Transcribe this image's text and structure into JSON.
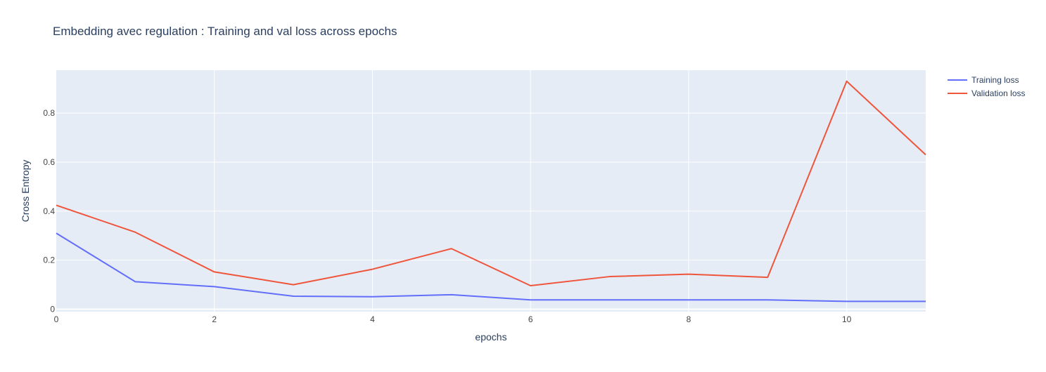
{
  "chart_data": {
    "type": "line",
    "title": "Embedding avec regulation : Training and val loss across epochs",
    "xlabel": "epochs",
    "ylabel": "Cross Entropy",
    "xlim": [
      0,
      11
    ],
    "ylim": [
      -0.01,
      0.975
    ],
    "xticks": [
      0,
      2,
      4,
      6,
      8,
      10
    ],
    "yticks": [
      0,
      0.2,
      0.4,
      0.6,
      0.8
    ],
    "xtick_labels": [
      "0",
      "2",
      "4",
      "6",
      "8",
      "10"
    ],
    "ytick_labels": [
      "0",
      "0.2",
      "0.4",
      "0.6",
      "0.8"
    ],
    "grid": true,
    "legend_position": "top-right",
    "x": [
      0,
      1,
      2,
      3,
      4,
      5,
      6,
      7,
      8,
      9,
      10,
      11
    ],
    "series": [
      {
        "name": "Training loss",
        "color": "#636efa",
        "values": [
          0.31,
          0.112,
          0.092,
          0.053,
          0.051,
          0.059,
          0.038,
          0.038,
          0.038,
          0.038,
          0.032,
          0.032
        ]
      },
      {
        "name": "Validation loss",
        "color": "#ef553b",
        "values": [
          0.424,
          0.314,
          0.152,
          0.1,
          0.163,
          0.247,
          0.096,
          0.133,
          0.143,
          0.13,
          0.93,
          0.63
        ]
      }
    ]
  }
}
